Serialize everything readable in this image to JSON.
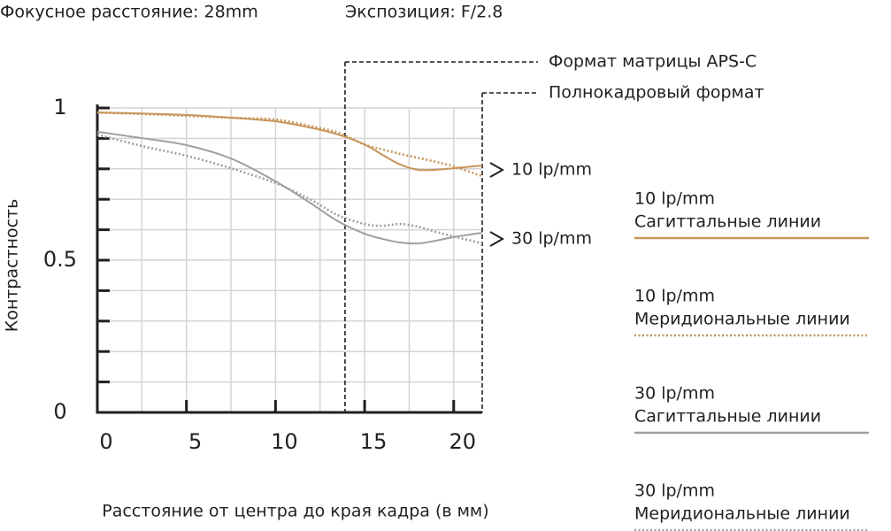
{
  "chart_data": {
    "type": "line",
    "header": [
      "Фокусное расстояние: 28mm",
      "Экспозиция: F/2.8"
    ],
    "xlabel": "Расстояние от центра до края кадра (в мм)",
    "ylabel": "Контрастность",
    "x": [
      0,
      2.5,
      5,
      7.5,
      10,
      12,
      13.5,
      15,
      16,
      17,
      18,
      19,
      20,
      21.6
    ],
    "xlim": [
      0,
      21.6
    ],
    "xticks": [
      0,
      5,
      10,
      15,
      20
    ],
    "xminor_ticks": [
      2.5,
      7.5,
      12.5,
      17.5
    ],
    "ylim": [
      0,
      1
    ],
    "yticks": [
      0,
      0.5,
      1
    ],
    "yminor_ticks": [
      0.1,
      0.2,
      0.3,
      0.4,
      0.6,
      0.7,
      0.8,
      0.9
    ],
    "grid": true,
    "markers": [
      {
        "x": 13.9,
        "label": "Формат матрицы APS-C"
      },
      {
        "x": 21.6,
        "label": "Полнокадровый формат"
      }
    ],
    "line_labels": [
      "10 lp/mm",
      "30 lp/mm"
    ],
    "series": [
      {
        "group": "10 lp/mm",
        "name": "Сагиттальные линии",
        "color": "#c8955a",
        "style": "solid",
        "values": [
          0.985,
          0.982,
          0.977,
          0.968,
          0.956,
          0.935,
          0.913,
          0.88,
          0.846,
          0.814,
          0.797,
          0.797,
          0.802,
          0.811
        ]
      },
      {
        "group": "10 lp/mm",
        "name": "Меридиональные линии",
        "color": "#c8955a",
        "style": "dotted",
        "values": [
          0.985,
          0.98,
          0.974,
          0.968,
          0.962,
          0.94,
          0.919,
          0.88,
          0.864,
          0.849,
          0.836,
          0.823,
          0.808,
          0.776
        ]
      },
      {
        "group": "30 lp/mm",
        "name": "Сагиттальные линии",
        "color": "#a0a0a0",
        "style": "solid",
        "values": [
          0.922,
          0.901,
          0.878,
          0.834,
          0.759,
          0.686,
          0.628,
          0.587,
          0.57,
          0.558,
          0.555,
          0.564,
          0.576,
          0.59
        ]
      },
      {
        "group": "30 lp/mm",
        "name": "Меридиональные линии",
        "color": "#a0a0a0",
        "style": "dotted",
        "values": [
          0.913,
          0.875,
          0.843,
          0.802,
          0.753,
          0.698,
          0.648,
          0.619,
          0.613,
          0.619,
          0.61,
          0.593,
          0.578,
          0.555
        ]
      }
    ]
  }
}
